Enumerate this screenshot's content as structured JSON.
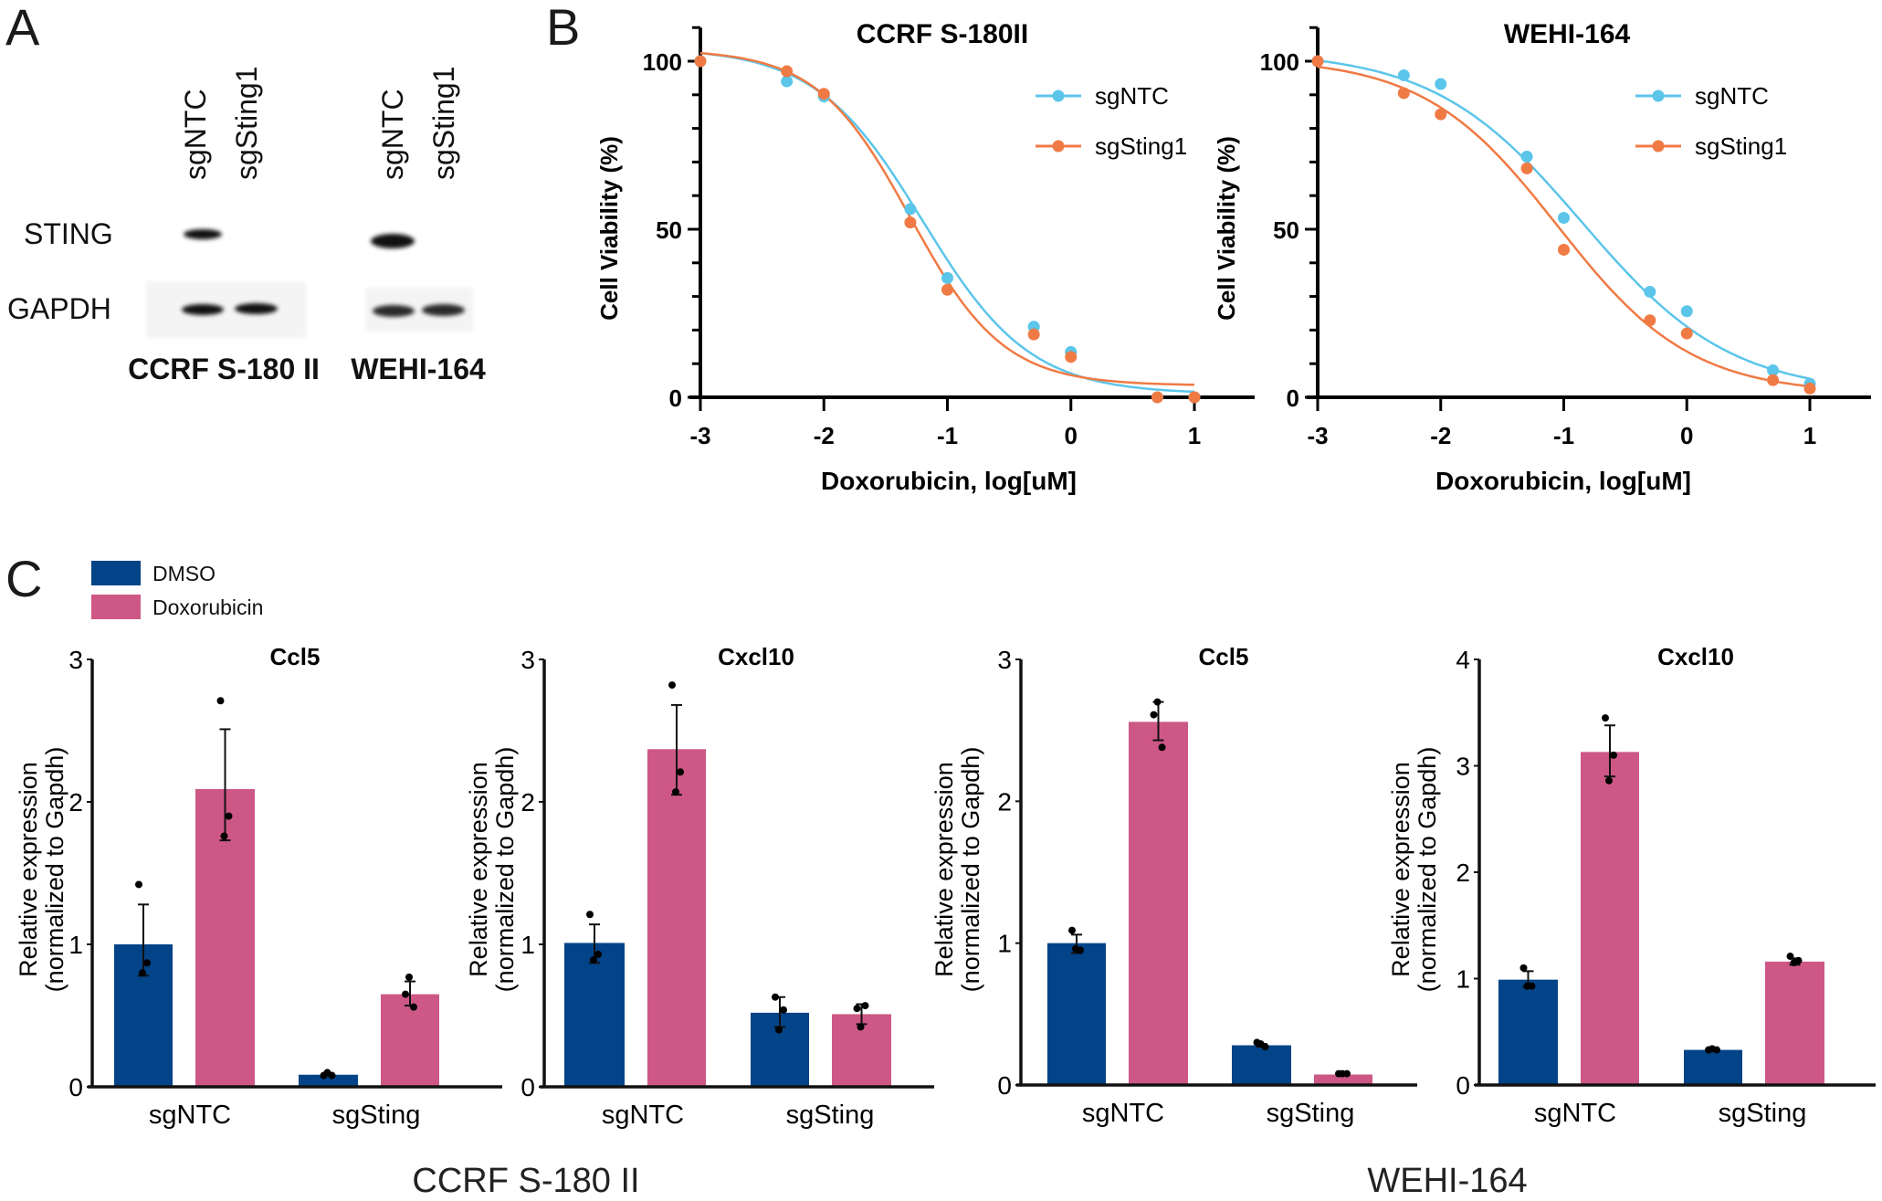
{
  "panels": {
    "a": "A",
    "b": "B",
    "c": "C"
  },
  "blot": {
    "lanes": [
      "sgNTC",
      "sgSting1",
      "sgNTC",
      "sgSting1"
    ],
    "rows": [
      "STING",
      "GAPDH"
    ],
    "cell_lines": [
      "CCRF S-180 II",
      "WEHI-164"
    ]
  },
  "bar_legend": [
    {
      "label": "DMSO",
      "color": "#034387"
    },
    {
      "label": "Doxorubicin",
      "color": "#cd5886"
    }
  ],
  "chart_data": [
    {
      "type": "line",
      "title": "CCRF S-180II",
      "xlabel": "Doxorubicin, log[uM]",
      "ylabel": "Cell Viability (%)",
      "xlim": [
        -3,
        1
      ],
      "ylim": [
        0,
        110
      ],
      "x_ticks": [
        "-3",
        "-2",
        "-1",
        "0",
        "1"
      ],
      "y_ticks": [
        "0",
        "50",
        "100"
      ],
      "legend": "top-right",
      "series": [
        {
          "name": "sgNTC",
          "color": "#5bc5ea",
          "x": [
            -3,
            -2.3,
            -2,
            -1.3,
            -1,
            -0.3,
            0,
            0.7,
            1
          ],
          "y": [
            100,
            94,
            89.5,
            56,
            35.5,
            21,
            13.5,
            0,
            0
          ],
          "fit": {
            "top": 104,
            "bottom": 1,
            "logIC50": -1.2,
            "hill": 1.0
          }
        },
        {
          "name": "sgSting1",
          "color": "#f07a44",
          "x": [
            -3,
            -2.3,
            -2,
            -1.3,
            -1,
            -0.3,
            0,
            0.7,
            1
          ],
          "y": [
            100,
            97,
            90.3,
            52,
            32,
            18.7,
            12,
            0,
            0
          ],
          "fit": {
            "top": 103.5,
            "bottom": 3.5,
            "logIC50": -1.3,
            "hill": 1.15
          }
        }
      ]
    },
    {
      "type": "line",
      "title": "WEHI-164",
      "xlabel": "Doxorubicin, log[uM]",
      "ylabel": "Cell Viability (%)",
      "xlim": [
        -3,
        1
      ],
      "ylim": [
        0,
        110
      ],
      "x_ticks": [
        "-3",
        "-2",
        "-1",
        "0",
        "1"
      ],
      "y_ticks": [
        "0",
        "50",
        "100"
      ],
      "legend": "top-right",
      "series": [
        {
          "name": "sgNTC",
          "color": "#5bc5ea",
          "x": [
            -3,
            -2.3,
            -2,
            -1.3,
            -1,
            -0.3,
            0,
            0.7,
            1
          ],
          "y": [
            100,
            95.8,
            93.2,
            71.6,
            53.4,
            31.4,
            25.6,
            8,
            4
          ],
          "fit": {
            "top": 103,
            "bottom": 1,
            "logIC50": -0.85,
            "hill": 0.72
          }
        },
        {
          "name": "sgSting1",
          "color": "#f07a44",
          "x": [
            -3,
            -2.3,
            -2,
            -1.3,
            -1,
            -0.3,
            0,
            0.7,
            1
          ],
          "y": [
            100,
            90.5,
            84.2,
            68.1,
            43.9,
            22.9,
            19,
            5.1,
            2.6
          ],
          "fit": {
            "top": 101,
            "bottom": 1,
            "logIC50": -1.05,
            "hill": 0.8
          }
        }
      ]
    },
    {
      "type": "bar",
      "title": "Ccl5",
      "cell_line": "CCRF S-180 II",
      "ylabel": [
        "Relative expression",
        "(normalized to Gapdh)"
      ],
      "categories": [
        "sgNTC",
        "sgSting"
      ],
      "ylim": [
        0,
        3
      ],
      "y_ticks": [
        "0",
        "1",
        "2",
        "3"
      ],
      "series": [
        {
          "name": "DMSO",
          "values": [
            1.0,
            0.085
          ],
          "err": [
            [
              0.78,
              1.28
            ],
            [
              0.08,
              0.09
            ]
          ],
          "points": [
            [
              1.42,
              0.87,
              0.8
            ],
            [
              0.08,
              0.08,
              0.1
            ]
          ]
        },
        {
          "name": "Doxorubicin",
          "values": [
            2.09,
            0.65
          ],
          "err": [
            [
              1.73,
              2.51
            ],
            [
              0.57,
              0.74
            ]
          ],
          "points": [
            [
              2.71,
              1.9,
              1.76
            ],
            [
              0.65,
              0.56,
              0.77
            ]
          ]
        }
      ]
    },
    {
      "type": "bar",
      "title": "Cxcl10",
      "cell_line": "CCRF S-180 II",
      "ylabel": [
        "Relative expression",
        "(normalized to Gapdh)"
      ],
      "categories": [
        "sgNTC",
        "sgSting"
      ],
      "ylim": [
        0,
        3
      ],
      "y_ticks": [
        "0",
        "1",
        "2",
        "3"
      ],
      "series": [
        {
          "name": "DMSO",
          "values": [
            1.01,
            0.52
          ],
          "err": [
            [
              0.87,
              1.14
            ],
            [
              0.42,
              0.63
            ]
          ],
          "points": [
            [
              1.21,
              0.93,
              0.89
            ],
            [
              0.63,
              0.54,
              0.4
            ]
          ]
        },
        {
          "name": "Doxorubicin",
          "values": [
            2.37,
            0.51
          ],
          "err": [
            [
              2.05,
              2.68
            ],
            [
              0.44,
              0.58
            ]
          ],
          "points": [
            [
              2.82,
              2.21,
              2.07
            ],
            [
              0.55,
              0.57,
              0.42
            ]
          ]
        }
      ]
    },
    {
      "type": "bar",
      "title": "Ccl5",
      "cell_line": "WEHI-164",
      "ylabel": [
        "Relative expression",
        "(normalized to Gapdh)"
      ],
      "categories": [
        "sgNTC",
        "sgSting"
      ],
      "ylim": [
        0,
        3
      ],
      "y_ticks": [
        "0",
        "1",
        "2",
        "3"
      ],
      "series": [
        {
          "name": "DMSO",
          "values": [
            1.0,
            0.28
          ],
          "err": [
            [
              0.93,
              1.06
            ],
            [
              0.27,
              0.29
            ]
          ],
          "points": [
            [
              1.09,
              0.95,
              0.96
            ],
            [
              0.3,
              0.27,
              0.29
            ]
          ]
        },
        {
          "name": "Doxorubicin",
          "values": [
            2.56,
            0.074
          ],
          "err": [
            [
              2.43,
              2.7
            ],
            [
              0.07,
              0.08
            ]
          ],
          "points": [
            [
              2.61,
              2.38,
              2.7
            ],
            [
              0.08,
              0.08,
              0.08
            ]
          ]
        }
      ]
    },
    {
      "type": "bar",
      "title": "Cxcl10",
      "cell_line": "WEHI-164",
      "ylabel": [
        "Relative expression",
        "(normalized to Gapdh)"
      ],
      "categories": [
        "sgNTC",
        "sgSting"
      ],
      "ylim": [
        0,
        4
      ],
      "y_ticks": [
        "0",
        "1",
        "2",
        "3",
        "4"
      ],
      "series": [
        {
          "name": "DMSO",
          "values": [
            0.99,
            0.33
          ],
          "err": [
            [
              0.92,
              1.07
            ],
            [
              0.32,
              0.34
            ]
          ],
          "points": [
            [
              1.1,
              0.93,
              0.93
            ],
            [
              0.33,
              0.33,
              0.34
            ]
          ]
        },
        {
          "name": "Doxorubicin",
          "values": [
            3.13,
            1.16
          ],
          "err": [
            [
              2.9,
              3.38
            ],
            [
              1.13,
              1.19
            ]
          ],
          "points": [
            [
              3.45,
              3.1,
              2.86
            ],
            [
              1.21,
              1.17,
              1.15
            ]
          ]
        }
      ]
    }
  ],
  "footer": {
    "left": "CCRF S-180 II",
    "right": "WEHI-164"
  }
}
